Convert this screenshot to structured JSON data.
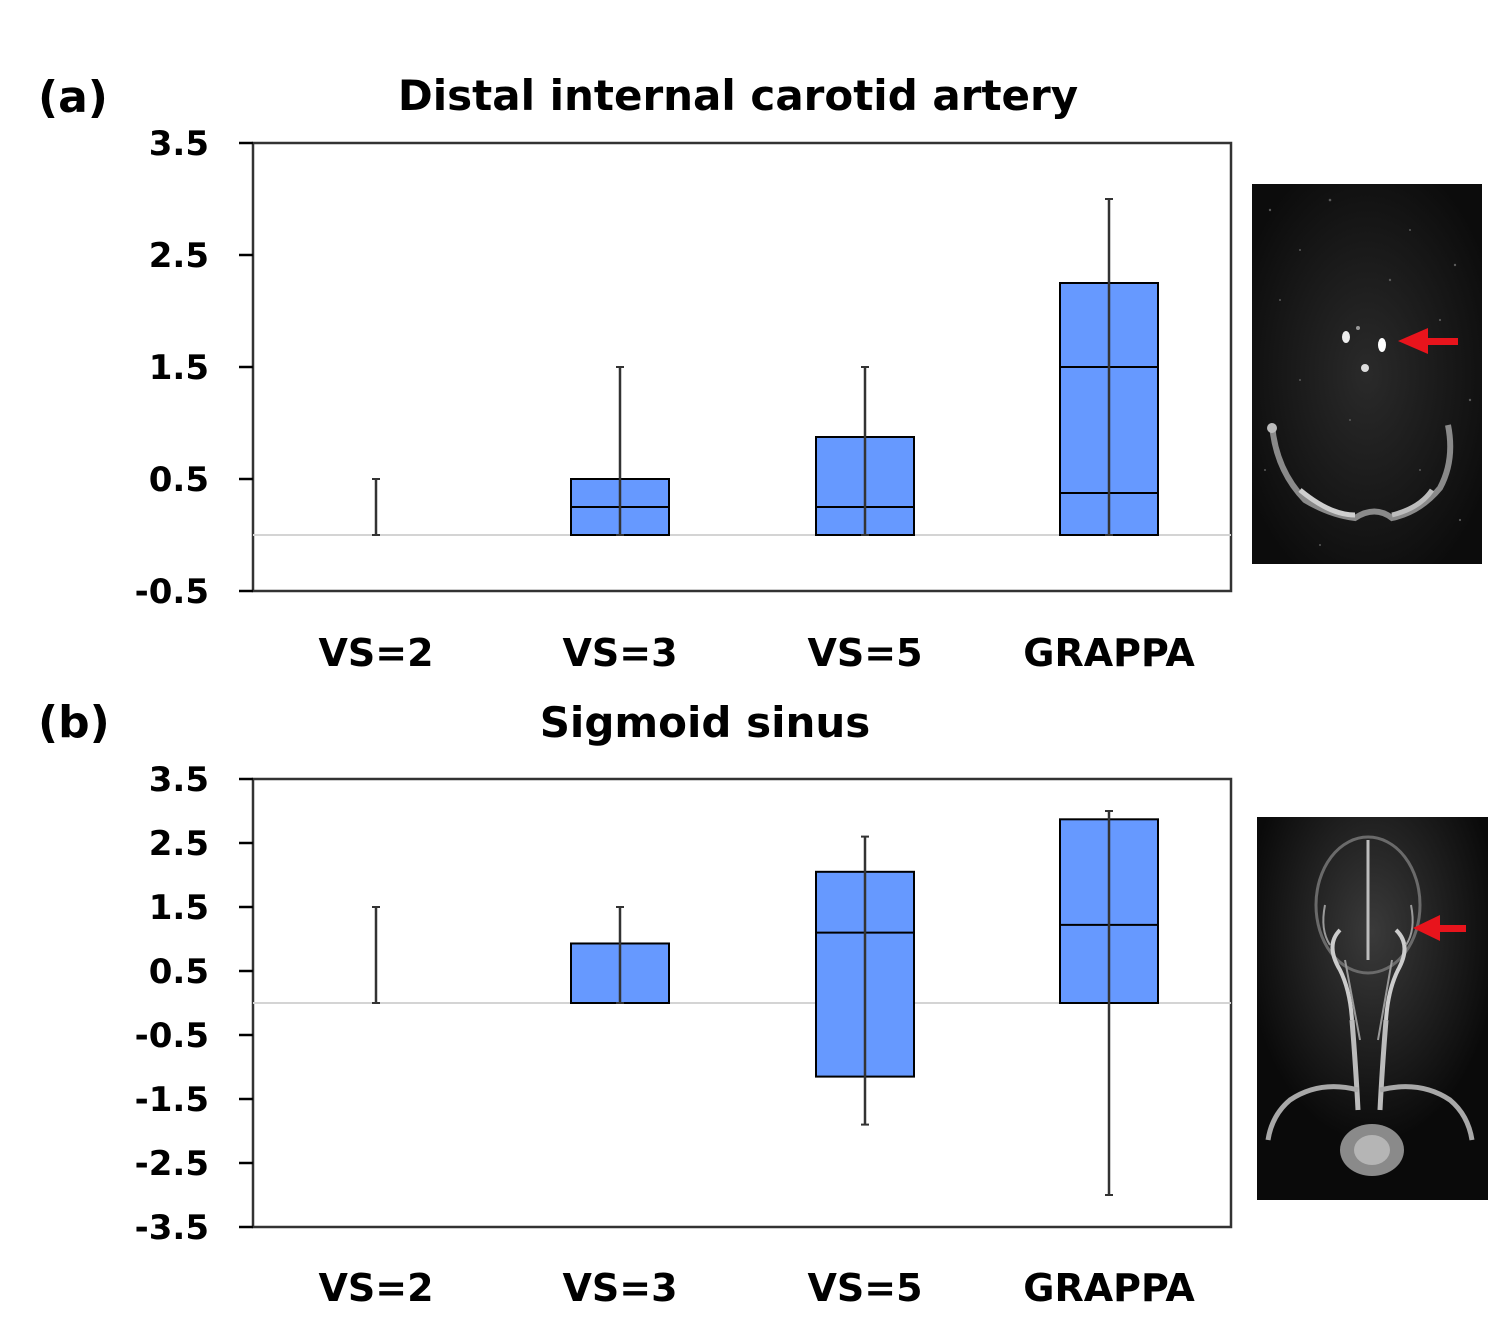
{
  "figure": {
    "panel_labels": [
      "(a)",
      "(b)"
    ]
  },
  "chart_data": [
    {
      "type": "box",
      "panel": "(a)",
      "title": "Distal internal carotid artery",
      "categories": [
        "VS=2",
        "VS=3",
        "VS=5",
        "GRAPPA"
      ],
      "y_ticks": [
        "3.5",
        "2.5",
        "1.5",
        "0.5",
        "-0.5"
      ],
      "ylim": [
        -0.5,
        3.5
      ],
      "baseline": 0,
      "box_color": "#6699ff",
      "boxes": [
        {
          "category": "VS=2",
          "whisker_low": 0,
          "q1": null,
          "median": null,
          "q3": null,
          "whisker_high": 0.5
        },
        {
          "category": "VS=3",
          "whisker_low": 0,
          "q1": 0,
          "median": 0.25,
          "q3": 0.5,
          "whisker_high": 1.5
        },
        {
          "category": "VS=5",
          "whisker_low": 0,
          "q1": 0,
          "median": 0.25,
          "q3": 0.875,
          "whisker_high": 1.5
        },
        {
          "category": "GRAPPA",
          "whisker_low": 0,
          "q1": 0,
          "median": 0.375,
          "q3": 2.25,
          "whisker_high": 3.0,
          "extra_line": 1.5
        }
      ],
      "inset": {
        "description": "axial MR angiography slice",
        "arrow_color": "#e8141c"
      }
    },
    {
      "type": "box",
      "panel": "(b)",
      "title": "Sigmoid sinus",
      "categories": [
        "VS=2",
        "VS=3",
        "VS=5",
        "GRAPPA"
      ],
      "y_ticks": [
        "3.5",
        "2.5",
        "1.5",
        "0.5",
        "-0.5",
        "-1.5",
        "-2.5",
        "-3.5"
      ],
      "ylim": [
        -3.5,
        3.5
      ],
      "baseline": 0,
      "box_color": "#6699ff",
      "boxes": [
        {
          "category": "VS=2",
          "whisker_low": 0,
          "q1": null,
          "median": null,
          "q3": null,
          "whisker_high": 1.5
        },
        {
          "category": "VS=3",
          "whisker_low": 0,
          "q1": 0,
          "median": 0,
          "q3": 0.93,
          "whisker_high": 1.5
        },
        {
          "category": "VS=5",
          "whisker_low": -1.9,
          "q1": -1.15,
          "median": 1.1,
          "q3": 2.05,
          "whisker_high": 2.6
        },
        {
          "category": "GRAPPA",
          "whisker_low": -3.0,
          "q1": 0,
          "median": 1.22,
          "q3": 2.87,
          "whisker_high": 3.0
        }
      ],
      "inset": {
        "description": "coronal MR venography MIP",
        "arrow_color": "#e8141c"
      }
    }
  ]
}
